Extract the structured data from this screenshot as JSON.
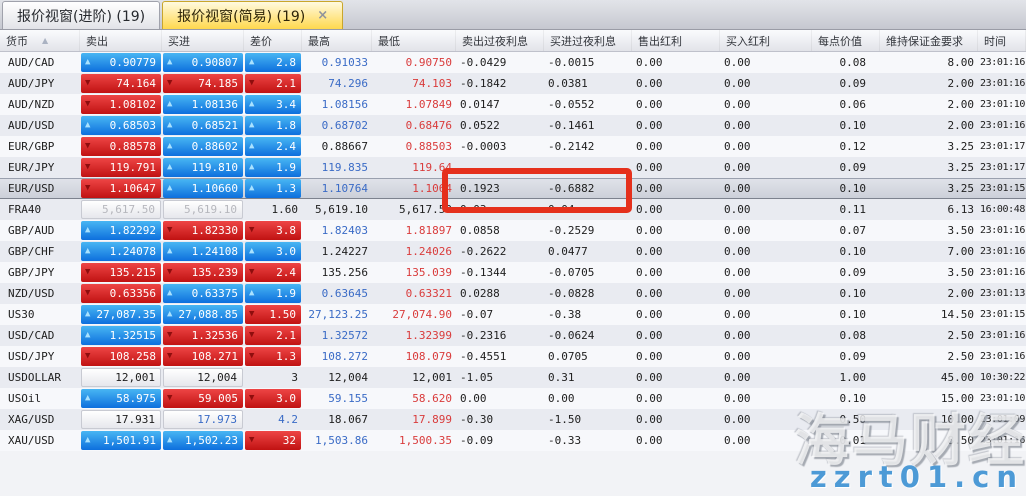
{
  "tabs": [
    {
      "label": "报价视窗(进阶) (19)",
      "active": false
    },
    {
      "label": "报价视窗(简易) (19)",
      "active": true
    }
  ],
  "icons": {
    "up_arrow": "▲",
    "down_arrow": "▼",
    "sort_asc": "▲",
    "close": "×"
  },
  "columns": [
    "货币",
    "卖出",
    "买进",
    "差价",
    "最高",
    "最低",
    "卖出过夜利息",
    "买进过夜利息",
    "售出红利",
    "买入红利",
    "每点价值",
    "维持保证金要求",
    "时间"
  ],
  "colors": {
    "up_cell": "#0d6fdd",
    "down_cell": "#c01212",
    "blue_text": "#3a6bc6",
    "red_text": "#d93b3b",
    "annotation": "#e5301c",
    "active_tab": "#ffd84e"
  },
  "watermark": {
    "line1": "海马财经",
    "line2": "zzrt01.cn"
  },
  "rows": [
    {
      "symbol": "AUD/CAD",
      "sell": "0.90779",
      "sell_style": "up",
      "buy": "0.90807",
      "buy_style": "up",
      "spread": "2.8",
      "spread_style": "up",
      "high": "0.91033",
      "high_color": "blue",
      "low": "0.90750",
      "low_color": "red",
      "sell_swap": "-0.0429",
      "buy_swap": "-0.0015",
      "sell_div": "0.00",
      "buy_div": "0.00",
      "point_value": "0.08",
      "margin": "8.00",
      "time": "23:01:16"
    },
    {
      "symbol": "AUD/JPY",
      "sell": "74.164",
      "sell_style": "down",
      "buy": "74.185",
      "buy_style": "down",
      "spread": "2.1",
      "spread_style": "down",
      "high": "74.296",
      "high_color": "blue",
      "low": "74.103",
      "low_color": "red",
      "sell_swap": "-0.1842",
      "buy_swap": "0.0381",
      "sell_div": "0.00",
      "buy_div": "0.00",
      "point_value": "0.09",
      "margin": "2.00",
      "time": "23:01:16"
    },
    {
      "symbol": "AUD/NZD",
      "sell": "1.08102",
      "sell_style": "down",
      "buy": "1.08136",
      "buy_style": "up",
      "spread": "3.4",
      "spread_style": "up",
      "high": "1.08156",
      "high_color": "blue",
      "low": "1.07849",
      "low_color": "red",
      "sell_swap": "0.0147",
      "buy_swap": "-0.0552",
      "sell_div": "0.00",
      "buy_div": "0.00",
      "point_value": "0.06",
      "margin": "2.00",
      "time": "23:01:10"
    },
    {
      "symbol": "AUD/USD",
      "sell": "0.68503",
      "sell_style": "up",
      "buy": "0.68521",
      "buy_style": "up",
      "spread": "1.8",
      "spread_style": "up",
      "high": "0.68702",
      "high_color": "blue",
      "low": "0.68476",
      "low_color": "red",
      "sell_swap": "0.0522",
      "buy_swap": "-0.1461",
      "sell_div": "0.00",
      "buy_div": "0.00",
      "point_value": "0.10",
      "margin": "2.00",
      "time": "23:01:16"
    },
    {
      "symbol": "EUR/GBP",
      "sell": "0.88578",
      "sell_style": "down",
      "buy": "0.88602",
      "buy_style": "up",
      "spread": "2.4",
      "spread_style": "up",
      "high": "0.88667",
      "high_color": "black",
      "low": "0.88503",
      "low_color": "red",
      "sell_swap": "-0.0003",
      "buy_swap": "-0.2142",
      "sell_div": "0.00",
      "buy_div": "0.00",
      "point_value": "0.12",
      "margin": "3.25",
      "time": "23:01:17"
    },
    {
      "symbol": "EUR/JPY",
      "sell": "119.791",
      "sell_style": "down",
      "buy": "119.810",
      "buy_style": "up",
      "spread": "1.9",
      "spread_style": "up",
      "high": "119.835",
      "high_color": "blue",
      "low": "119.64",
      "low_color": "red",
      "sell_swap": "",
      "buy_swap": "",
      "sell_div": "0.00",
      "buy_div": "0.00",
      "point_value": "0.09",
      "margin": "3.25",
      "time": "23:01:17"
    },
    {
      "symbol": "EUR/USD",
      "selected": true,
      "sell": "1.10647",
      "sell_style": "down",
      "buy": "1.10660",
      "buy_style": "up",
      "spread": "1.3",
      "spread_style": "up",
      "high": "1.10764",
      "high_color": "blue",
      "low": "1.1064",
      "low_color": "red",
      "sell_swap": "0.1923",
      "buy_swap": "-0.6882",
      "sell_div": "0.00",
      "buy_div": "0.00",
      "point_value": "0.10",
      "margin": "3.25",
      "time": "23:01:15"
    },
    {
      "symbol": "FRA40",
      "sell": "5,617.50",
      "sell_style": "neutral-grey",
      "buy": "5,619.10",
      "buy_style": "neutral-grey",
      "spread": "1.60",
      "spread_style": "plain",
      "high": "5,619.10",
      "high_color": "black",
      "low": "5,617.50",
      "low_color": "black",
      "sell_swap": "0.03",
      "buy_swap": "0.04",
      "sell_div": "0.00",
      "buy_div": "0.00",
      "point_value": "0.11",
      "margin": "6.13",
      "time": "16:00:48"
    },
    {
      "symbol": "GBP/AUD",
      "sell": "1.82292",
      "sell_style": "up",
      "buy": "1.82330",
      "buy_style": "down",
      "spread": "3.8",
      "spread_style": "down",
      "high": "1.82403",
      "high_color": "blue",
      "low": "1.81897",
      "low_color": "red",
      "sell_swap": "0.0858",
      "buy_swap": "-0.2529",
      "sell_div": "0.00",
      "buy_div": "0.00",
      "point_value": "0.07",
      "margin": "3.50",
      "time": "23:01:16"
    },
    {
      "symbol": "GBP/CHF",
      "sell": "1.24078",
      "sell_style": "up",
      "buy": "1.24108",
      "buy_style": "up",
      "spread": "3.0",
      "spread_style": "up",
      "high": "1.24227",
      "high_color": "black",
      "low": "1.24026",
      "low_color": "red",
      "sell_swap": "-0.2622",
      "buy_swap": "0.0477",
      "sell_div": "0.00",
      "buy_div": "0.00",
      "point_value": "0.10",
      "margin": "7.00",
      "time": "23:01:16"
    },
    {
      "symbol": "GBP/JPY",
      "sell": "135.215",
      "sell_style": "down",
      "buy": "135.239",
      "buy_style": "down",
      "spread": "2.4",
      "spread_style": "down",
      "high": "135.256",
      "high_color": "black",
      "low": "135.039",
      "low_color": "red",
      "sell_swap": "-0.1344",
      "buy_swap": "-0.0705",
      "sell_div": "0.00",
      "buy_div": "0.00",
      "point_value": "0.09",
      "margin": "3.50",
      "time": "23:01:16"
    },
    {
      "symbol": "NZD/USD",
      "sell": "0.63356",
      "sell_style": "down",
      "buy": "0.63375",
      "buy_style": "up",
      "spread": "1.9",
      "spread_style": "up",
      "high": "0.63645",
      "high_color": "blue",
      "low": "0.63321",
      "low_color": "red",
      "sell_swap": "0.0288",
      "buy_swap": "-0.0828",
      "sell_div": "0.00",
      "buy_div": "0.00",
      "point_value": "0.10",
      "margin": "2.00",
      "time": "23:01:13"
    },
    {
      "symbol": "US30",
      "sell": "27,087.35",
      "sell_style": "up",
      "buy": "27,088.85",
      "buy_style": "up",
      "spread": "1.50",
      "spread_style": "down",
      "high": "27,123.25",
      "high_color": "blue",
      "low": "27,074.90",
      "low_color": "red",
      "sell_swap": "-0.07",
      "buy_swap": "-0.38",
      "sell_div": "0.00",
      "buy_div": "0.00",
      "point_value": "0.10",
      "margin": "14.50",
      "time": "23:01:15"
    },
    {
      "symbol": "USD/CAD",
      "sell": "1.32515",
      "sell_style": "up",
      "buy": "1.32536",
      "buy_style": "down",
      "spread": "2.1",
      "spread_style": "down",
      "high": "1.32572",
      "high_color": "blue",
      "low": "1.32399",
      "low_color": "red",
      "sell_swap": "-0.2316",
      "buy_swap": "-0.0624",
      "sell_div": "0.00",
      "buy_div": "0.00",
      "point_value": "0.08",
      "margin": "2.50",
      "time": "23:01:16"
    },
    {
      "symbol": "USD/JPY",
      "sell": "108.258",
      "sell_style": "down",
      "buy": "108.271",
      "buy_style": "down",
      "spread": "1.3",
      "spread_style": "down",
      "high": "108.272",
      "high_color": "blue",
      "low": "108.079",
      "low_color": "red",
      "sell_swap": "-0.4551",
      "buy_swap": "0.0705",
      "sell_div": "0.00",
      "buy_div": "0.00",
      "point_value": "0.09",
      "margin": "2.50",
      "time": "23:01:16"
    },
    {
      "symbol": "USDOLLAR",
      "sell": "12,001",
      "sell_style": "neutral",
      "buy": "12,004",
      "buy_style": "neutral",
      "spread": "3",
      "spread_style": "plain",
      "high": "12,004",
      "high_color": "black",
      "low": "12,001",
      "low_color": "black",
      "sell_swap": "-1.05",
      "buy_swap": "0.31",
      "sell_div": "0.00",
      "buy_div": "0.00",
      "point_value": "1.00",
      "margin": "45.00",
      "time": "10:30:22"
    },
    {
      "symbol": "USOil",
      "sell": "58.975",
      "sell_style": "up",
      "buy": "59.005",
      "buy_style": "down",
      "spread": "3.0",
      "spread_style": "down",
      "high": "59.155",
      "high_color": "blue",
      "low": "58.620",
      "low_color": "red",
      "sell_swap": "0.00",
      "buy_swap": "0.00",
      "sell_div": "0.00",
      "buy_div": "0.00",
      "point_value": "0.10",
      "margin": "15.00",
      "time": "23:01:10"
    },
    {
      "symbol": "XAG/USD",
      "sell": "17.931",
      "sell_style": "neutral",
      "buy": "17.973",
      "buy_style": "neutral-blue",
      "spread": "4.2",
      "spread_style": "plain-blue",
      "high": "18.067",
      "high_color": "black",
      "low": "17.899",
      "low_color": "red",
      "sell_swap": "-0.30",
      "buy_swap": "-1.50",
      "sell_div": "0.00",
      "buy_div": "0.00",
      "point_value": "0.50",
      "margin": "10.00",
      "time": "23:01:09"
    },
    {
      "symbol": "XAU/USD",
      "sell": "1,501.91",
      "sell_style": "up",
      "buy": "1,502.23",
      "buy_style": "up",
      "spread": "32",
      "spread_style": "down",
      "high": "1,503.86",
      "high_color": "blue",
      "low": "1,500.35",
      "low_color": "red",
      "sell_swap": "-0.09",
      "buy_swap": "-0.33",
      "sell_div": "0.00",
      "buy_div": "0.00",
      "point_value": "0.01",
      "margin": "8.50",
      "time": "23:01:16"
    }
  ]
}
